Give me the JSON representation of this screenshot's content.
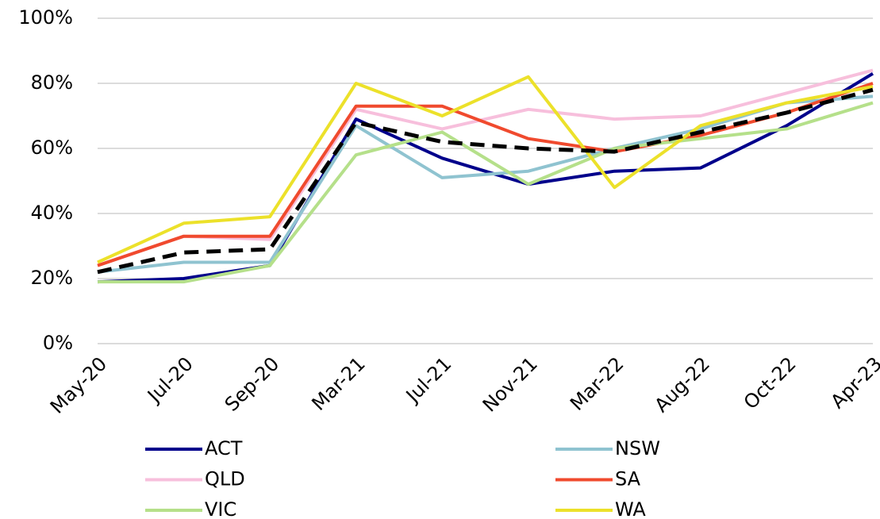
{
  "chart_data": {
    "type": "line",
    "categories": [
      "May-20",
      "Jul-20",
      "Sep-20",
      "Mar-21",
      "Jul-21",
      "Nov-21",
      "Mar-22",
      "Aug-22",
      "Oct-22",
      "Apr-23"
    ],
    "series": [
      {
        "name": "ACT",
        "color": "#00008b",
        "values": [
          19,
          20,
          24,
          69,
          57,
          49,
          53,
          54,
          67,
          83
        ]
      },
      {
        "name": "NSW",
        "color": "#8fc3d0",
        "values": [
          22,
          25,
          25,
          67,
          51,
          53,
          60,
          66,
          74,
          76
        ]
      },
      {
        "name": "QLD",
        "color": "#f7bfdc",
        "values": [
          24,
          33,
          32,
          72,
          66,
          72,
          69,
          70,
          77,
          84
        ]
      },
      {
        "name": "SA",
        "color": "#f04a2e",
        "values": [
          24,
          33,
          33,
          73,
          73,
          63,
          59,
          64,
          71,
          80
        ]
      },
      {
        "name": "VIC",
        "color": "#b5e08a",
        "values": [
          19,
          19,
          24,
          58,
          65,
          49,
          60,
          63,
          66,
          74
        ]
      },
      {
        "name": "WA",
        "color": "#ece12a",
        "values": [
          25,
          37,
          39,
          80,
          70,
          82,
          48,
          67,
          74,
          79
        ]
      },
      {
        "color": "#000000",
        "dashed": true,
        "values": [
          22,
          28,
          29,
          68,
          62,
          60,
          59,
          65,
          71,
          78
        ]
      }
    ],
    "ylim": [
      0,
      100
    ],
    "yticks": [
      {
        "value": 0,
        "label": "0%"
      },
      {
        "value": 20,
        "label": "20%"
      },
      {
        "value": 40,
        "label": "40%"
      },
      {
        "value": 60,
        "label": "60%"
      },
      {
        "value": 80,
        "label": "80%"
      },
      {
        "value": 100,
        "label": "100%"
      }
    ],
    "grid": true,
    "legend": "bottom"
  }
}
